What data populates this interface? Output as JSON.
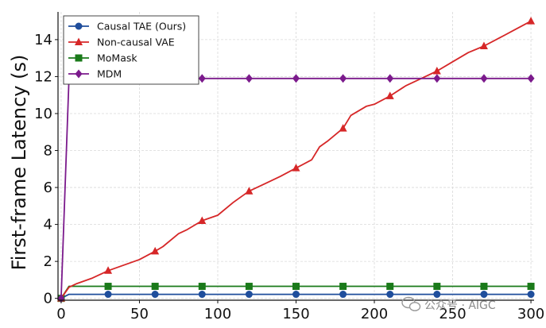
{
  "chart_data": {
    "type": "line",
    "ylabel": "First-frame Latency (s)",
    "xlabel": "",
    "xlim": [
      -2,
      302
    ],
    "ylim": [
      -0.1,
      15.5
    ],
    "xticks": [
      0,
      50,
      100,
      150,
      200,
      250,
      300
    ],
    "yticks": [
      0,
      2,
      4,
      6,
      8,
      10,
      12,
      14
    ],
    "grid": true,
    "legend_position": "top-left",
    "series": [
      {
        "name": "Causal TAE (Ours)",
        "color": "#1f4e9c",
        "marker": "circle",
        "x": [
          0,
          5,
          30,
          60,
          90,
          120,
          150,
          180,
          210,
          240,
          270,
          300
        ],
        "y": [
          0,
          0.22,
          0.22,
          0.22,
          0.22,
          0.22,
          0.22,
          0.22,
          0.22,
          0.22,
          0.22,
          0.22
        ],
        "marker_x": [
          0,
          30,
          60,
          90,
          120,
          150,
          180,
          210,
          240,
          270,
          300
        ]
      },
      {
        "name": "Non-causal VAE",
        "color": "#d62728",
        "marker": "triangle",
        "x": [
          0,
          5,
          10,
          20,
          30,
          40,
          50,
          60,
          65,
          75,
          80,
          90,
          100,
          110,
          115,
          120,
          130,
          140,
          150,
          160,
          165,
          170,
          180,
          185,
          195,
          200,
          210,
          220,
          230,
          240,
          250,
          260,
          270,
          280,
          290,
          300
        ],
        "y": [
          0,
          0.6,
          0.8,
          1.1,
          1.5,
          1.8,
          2.1,
          2.55,
          2.8,
          3.5,
          3.7,
          4.2,
          4.5,
          5.2,
          5.5,
          5.8,
          6.2,
          6.6,
          7.05,
          7.5,
          8.2,
          8.5,
          9.2,
          9.9,
          10.4,
          10.5,
          10.95,
          11.5,
          11.9,
          12.3,
          12.8,
          13.3,
          13.65,
          14.1,
          14.55,
          15.0
        ],
        "marker_x": [
          0,
          30,
          60,
          90,
          120,
          150,
          180,
          210,
          240,
          270,
          300
        ]
      },
      {
        "name": "MoMask",
        "color": "#1a7a1a",
        "marker": "square",
        "x": [
          0,
          5,
          30,
          60,
          90,
          120,
          150,
          180,
          210,
          240,
          270,
          300
        ],
        "y": [
          0,
          0.65,
          0.65,
          0.65,
          0.65,
          0.65,
          0.65,
          0.65,
          0.65,
          0.65,
          0.65,
          0.65
        ],
        "marker_x": [
          0,
          30,
          60,
          90,
          120,
          150,
          180,
          210,
          240,
          270,
          300
        ]
      },
      {
        "name": "MDM",
        "color": "#7b1a8c",
        "marker": "diamond",
        "x": [
          0,
          5,
          30,
          60,
          90,
          120,
          150,
          180,
          210,
          240,
          270,
          300
        ],
        "y": [
          0,
          11.9,
          11.9,
          11.9,
          11.9,
          11.9,
          11.9,
          11.9,
          11.9,
          11.9,
          11.9,
          11.9
        ],
        "marker_x": [
          0,
          30,
          60,
          90,
          120,
          150,
          180,
          210,
          240,
          270,
          300
        ]
      }
    ]
  },
  "watermark": {
    "text": "公众号 · AIGC",
    "icon": "wechat-icon"
  }
}
